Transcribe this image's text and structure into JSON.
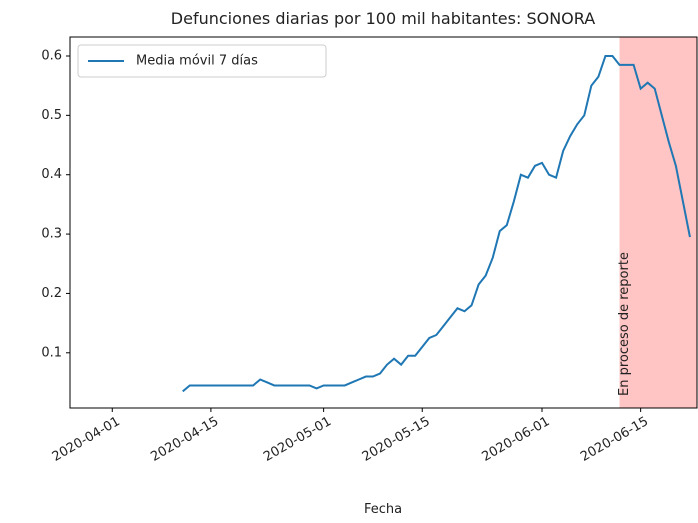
{
  "chart_data": {
    "type": "line",
    "title": "Defunciones diarias por 100 mil habitantes: SONORA",
    "x_label": "Fecha",
    "x": [
      "2020-04-11",
      "2020-04-12",
      "2020-04-13",
      "2020-04-14",
      "2020-04-15",
      "2020-04-16",
      "2020-04-17",
      "2020-04-18",
      "2020-04-19",
      "2020-04-20",
      "2020-04-21",
      "2020-04-22",
      "2020-04-23",
      "2020-04-24",
      "2020-04-25",
      "2020-04-26",
      "2020-04-27",
      "2020-04-28",
      "2020-04-29",
      "2020-04-30",
      "2020-05-01",
      "2020-05-02",
      "2020-05-03",
      "2020-05-04",
      "2020-05-05",
      "2020-05-06",
      "2020-05-07",
      "2020-05-08",
      "2020-05-09",
      "2020-05-10",
      "2020-05-11",
      "2020-05-12",
      "2020-05-13",
      "2020-05-14",
      "2020-05-15",
      "2020-05-16",
      "2020-05-17",
      "2020-05-18",
      "2020-05-19",
      "2020-05-20",
      "2020-05-21",
      "2020-05-22",
      "2020-05-23",
      "2020-05-24",
      "2020-05-25",
      "2020-05-26",
      "2020-05-27",
      "2020-05-28",
      "2020-05-29",
      "2020-05-30",
      "2020-05-31",
      "2020-06-01",
      "2020-06-02",
      "2020-06-03",
      "2020-06-04",
      "2020-06-05",
      "2020-06-06",
      "2020-06-07",
      "2020-06-08",
      "2020-06-09",
      "2020-06-10",
      "2020-06-11",
      "2020-06-12",
      "2020-06-13",
      "2020-06-14",
      "2020-06-15",
      "2020-06-16",
      "2020-06-17",
      "2020-06-18",
      "2020-06-19",
      "2020-06-20",
      "2020-06-21",
      "2020-06-22"
    ],
    "series": [
      {
        "name": "Media móvil 7 días",
        "color": "#1f77b4",
        "values": [
          0.035,
          0.045,
          0.045,
          0.045,
          0.045,
          0.045,
          0.045,
          0.045,
          0.045,
          0.045,
          0.045,
          0.055,
          0.05,
          0.045,
          0.045,
          0.045,
          0.045,
          0.045,
          0.045,
          0.04,
          0.045,
          0.045,
          0.045,
          0.045,
          0.05,
          0.055,
          0.06,
          0.06,
          0.065,
          0.08,
          0.09,
          0.08,
          0.095,
          0.095,
          0.11,
          0.125,
          0.13,
          0.145,
          0.16,
          0.175,
          0.17,
          0.18,
          0.215,
          0.23,
          0.26,
          0.305,
          0.315,
          0.355,
          0.4,
          0.395,
          0.415,
          0.42,
          0.4,
          0.395,
          0.44,
          0.465,
          0.485,
          0.5,
          0.55,
          0.565,
          0.6,
          0.6,
          0.585,
          0.585,
          0.585,
          0.545,
          0.555,
          0.545,
          0.5,
          0.455,
          0.415,
          0.355,
          0.295
        ]
      }
    ],
    "xlim": [
      "2020-03-26",
      "2020-06-23"
    ],
    "xticks": [
      "2020-04-01",
      "2020-04-15",
      "2020-05-01",
      "2020-05-15",
      "2020-06-01",
      "2020-06-15"
    ],
    "ylim": [
      0.007,
      0.632
    ],
    "yticks": [
      0.1,
      0.2,
      0.3,
      0.4,
      0.5,
      0.6
    ],
    "span": {
      "start": "2020-06-12",
      "end": "2020-06-23",
      "label": "En proceso de reporte",
      "color": "#ffc4c4"
    },
    "legend": "upper left",
    "grid": false
  }
}
